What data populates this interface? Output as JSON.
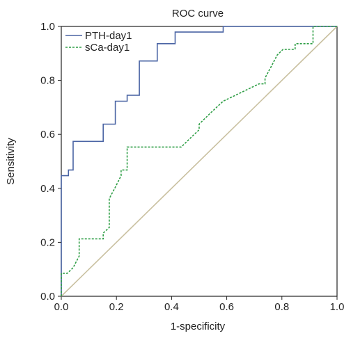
{
  "chart_data": {
    "type": "line",
    "title": "ROC curve",
    "xlabel": "1-specificity",
    "ylabel": "Sensitivity",
    "xlim": [
      0,
      1
    ],
    "ylim": [
      0,
      1
    ],
    "xticks": [
      "0.0",
      "0.2",
      "0.4",
      "0.6",
      "0.8",
      "1.0"
    ],
    "yticks": [
      "0.0",
      "0.2",
      "0.4",
      "0.6",
      "0.8",
      "1.0"
    ],
    "grid": false,
    "legend_position": "top-left",
    "colors": {
      "pth": "#4a64a4",
      "sca": "#2e9e45",
      "reference": "#c9c0a0"
    },
    "series": [
      {
        "name": "PTH-day1",
        "style": "solid",
        "x": [
          0,
          0,
          0.026,
          0.026,
          0.043,
          0.043,
          0.152,
          0.152,
          0.196,
          0.196,
          0.239,
          0.239,
          0.283,
          0.283,
          0.348,
          0.348,
          0.413,
          0.413,
          0.587,
          0.587,
          1.0
        ],
        "y": [
          0,
          0.447,
          0.447,
          0.468,
          0.468,
          0.574,
          0.574,
          0.638,
          0.638,
          0.723,
          0.723,
          0.745,
          0.745,
          0.872,
          0.872,
          0.936,
          0.936,
          0.979,
          0.979,
          1.0,
          1.0
        ]
      },
      {
        "name": "sCa-day1",
        "style": "dashed",
        "x": [
          0,
          0,
          0.022,
          0.043,
          0.065,
          0.065,
          0.152,
          0.152,
          0.174,
          0.174,
          0.196,
          0.217,
          0.217,
          0.239,
          0.239,
          0.435,
          0.478,
          0.5,
          0.5,
          0.543,
          0.587,
          0.717,
          0.739,
          0.739,
          0.761,
          0.783,
          0.804,
          0.804,
          0.848,
          0.848,
          0.913,
          0.913,
          1.0
        ],
        "y": [
          0,
          0.085,
          0.085,
          0.106,
          0.149,
          0.213,
          0.213,
          0.234,
          0.255,
          0.362,
          0.404,
          0.447,
          0.468,
          0.468,
          0.553,
          0.553,
          0.596,
          0.617,
          0.638,
          0.681,
          0.723,
          0.787,
          0.787,
          0.809,
          0.851,
          0.894,
          0.915,
          0.915,
          0.915,
          0.936,
          0.936,
          1.0,
          1.0
        ]
      }
    ],
    "reference_line": {
      "x": [
        0,
        1
      ],
      "y": [
        0,
        1
      ]
    }
  }
}
